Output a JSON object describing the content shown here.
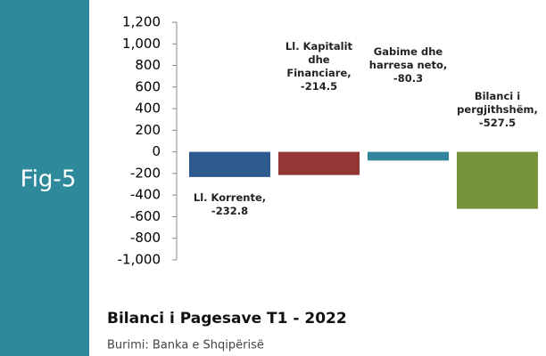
{
  "chart_data": {
    "type": "bar",
    "side_label": "Fig-5",
    "title": "Bilanci i Pagesave T1 - 2022",
    "source": "Burimi: Banka e Shqipërisë",
    "values": [
      -232.8,
      -214.5,
      -80.3,
      -527.5
    ],
    "value_labels": [
      "Ll. Korrente, -232.8",
      "Ll. Kapitalit dhe Financiare, -214.5",
      "Gabime dhe harresa neto, -80.3",
      "Bilanci i pergjithshëm, -527.5"
    ],
    "colors": [
      "#2e5b8f",
      "#943634",
      "#31849b",
      "#77933c"
    ],
    "ylim": [
      -1000,
      1200
    ],
    "yticks": [
      {
        "value": -1000,
        "label": "-1,000"
      },
      -800,
      -600,
      -400,
      -200,
      0,
      200,
      400,
      600,
      800,
      {
        "value": 1000,
        "label": "1,000"
      },
      {
        "value": 1200,
        "label": "1,200"
      }
    ]
  }
}
